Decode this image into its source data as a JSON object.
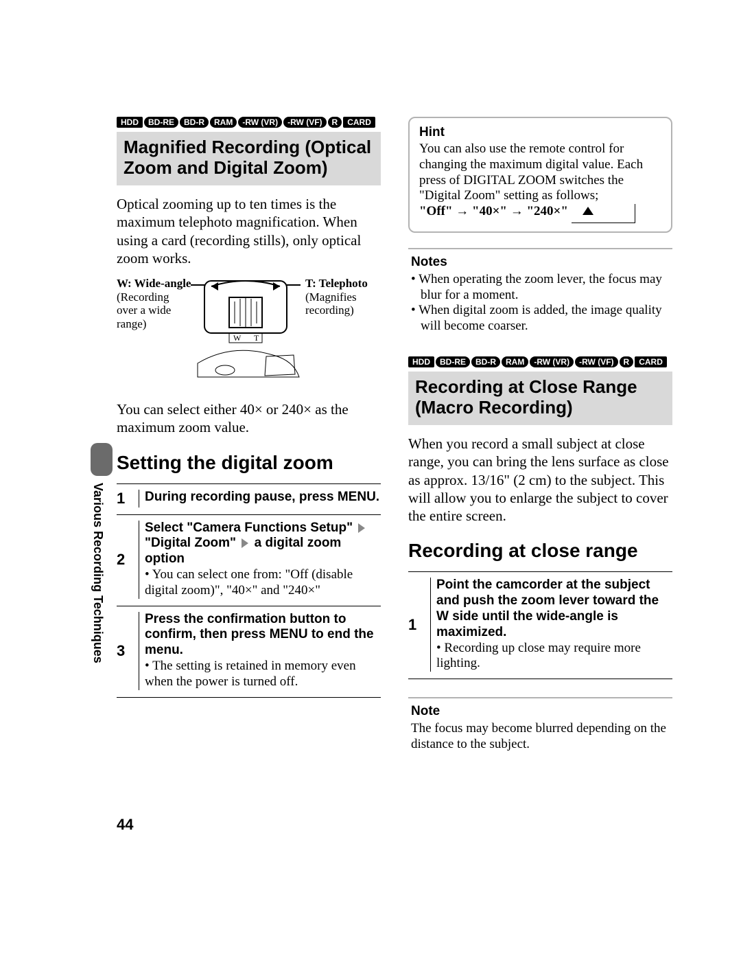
{
  "media_badges": [
    "HDD",
    "BD-RE",
    "BD-R",
    "RAM",
    "-RW (VR)",
    "-RW (VF)",
    "R",
    "CARD"
  ],
  "left": {
    "section_title": "Magnified Recording (Optical Zoom and Digital Zoom)",
    "intro": "Optical zooming up to ten times is the maximum telephoto magnification. When using a card (recording stills), only optical zoom works.",
    "zoom_labels": {
      "w_title": "W: Wide-angle",
      "w_desc": "(Recording over a wide range)",
      "t_title": "T: Telephoto",
      "t_desc": "(Magnifies recording)",
      "w_letter": "W",
      "t_letter": "T"
    },
    "post_diagram": "You can select either 40× or 240× as the maximum zoom value.",
    "sub_head": "Setting the digital zoom",
    "steps": [
      {
        "num": "1",
        "strong": "During recording pause, press MENU."
      },
      {
        "num": "2",
        "strong_parts": [
          "Select \"Camera Functions Setup\"",
          "\"Digital Zoom\"",
          "a digital zoom option"
        ],
        "bullets": [
          "You can select one from: \"Off (disable digital zoom)\", \"40×\" and \"240×\""
        ]
      },
      {
        "num": "3",
        "strong": "Press the confirmation button to confirm, then press MENU to end the menu.",
        "bullets": [
          "The setting is retained in memory even when the power is turned off."
        ]
      }
    ]
  },
  "right": {
    "hint_title": "Hint",
    "hint_text": "You can also use the remote control for changing the maximum digital value. Each press of DIGITAL ZOOM switches the \"Digital Zoom\" setting as follows;",
    "hint_seq": [
      "\"Off\"",
      "\"40×\"",
      "\"240×\""
    ],
    "notes_title": "Notes",
    "notes": [
      "When operating the zoom lever, the focus may blur for a moment.",
      "When digital zoom is added, the image quality will become coarser."
    ],
    "section_title": "Recording at Close Range (Macro Recording)",
    "intro": "When you record a small subject at close range, you can bring the lens surface as close as approx. 13/16\" (2 cm) to the subject. This will allow you to enlarge the subject to cover the entire screen.",
    "sub_head": "Recording at close range",
    "steps": [
      {
        "num": "1",
        "strong": "Point the camcorder at the subject and push the zoom lever toward the W side until the wide-angle is maximized.",
        "bullets": [
          "Recording up close may require more lighting."
        ]
      }
    ],
    "note_title": "Note",
    "note_text": "The focus may become blurred depending on the distance to the subject."
  },
  "side_tab": "Various Recording Techniques",
  "page_number": "44",
  "colors": {
    "section_bg": "#d9d9d9",
    "badge_bg": "#000000",
    "badge_fg": "#ffffff",
    "hint_border": "#b3b3b3",
    "arrow_gray": "#888888"
  }
}
